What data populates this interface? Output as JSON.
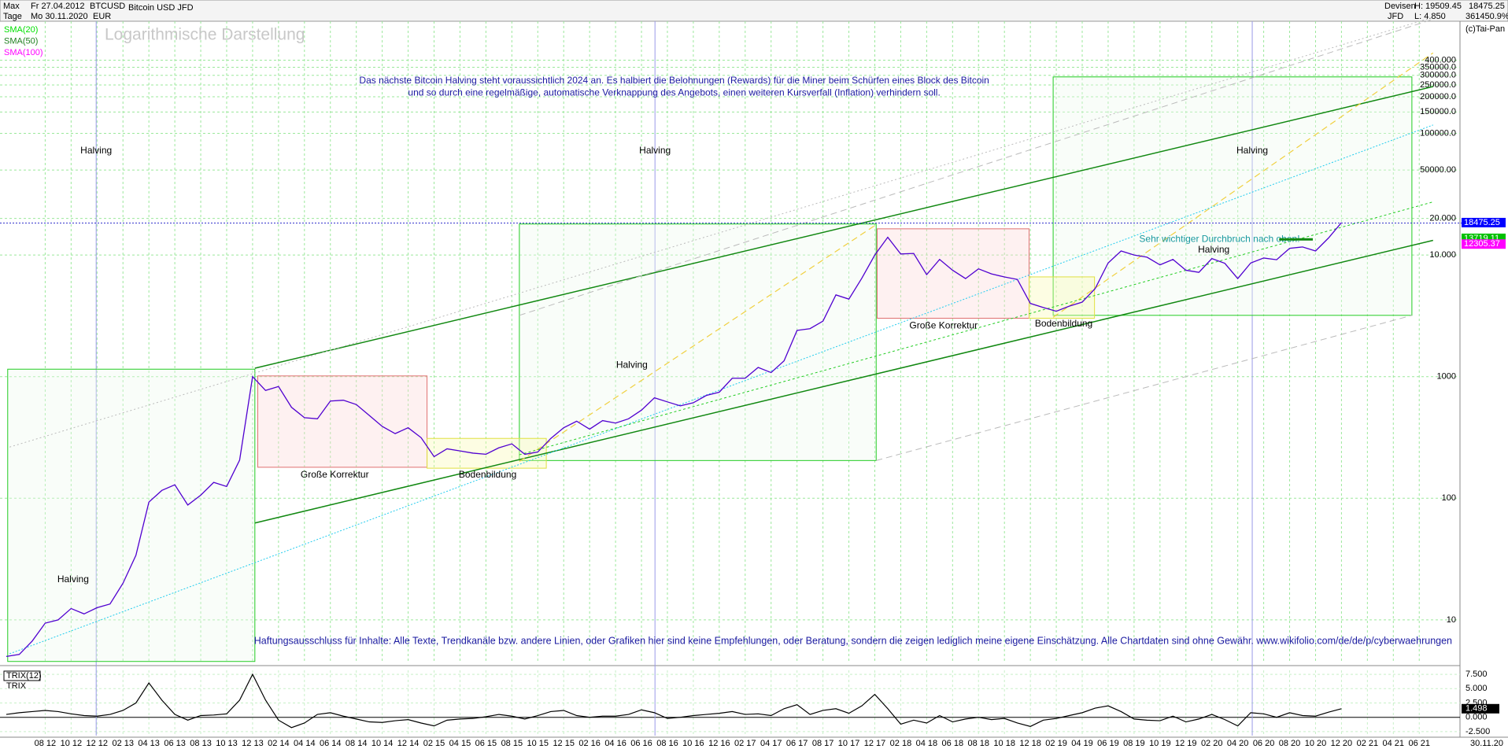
{
  "header": {
    "range": "Max",
    "from": "Fr 27.04.2012",
    "interval": "Tage",
    "to": "Mo 30.11.2020",
    "symbol": "BTCUSD",
    "currency": "EUR",
    "instrument": "Bitcoin USD JFD",
    "market": "Devisen",
    "broker": "JFD",
    "high": "H: 19509.45",
    "low": "L: 4.850",
    "last": "18475.25",
    "change": "361450.9%",
    "copyright": "(c)Tai-Pan",
    "date_end": "30.11.20"
  },
  "chart_data": [
    {
      "type": "line",
      "title": "Logarithmische Darstellung",
      "log_scale": true,
      "grid": true,
      "legend": [
        "SMA(20)",
        "SMA(50)",
        "SMA(100)"
      ],
      "legend_colors": [
        "#00e000",
        "#208020",
        "#ff00ff"
      ],
      "categories": [
        null,
        null,
        null,
        "08 12",
        null,
        "10 12",
        null,
        "12 12",
        null,
        "02 13",
        null,
        "04 13",
        null,
        "06 13",
        null,
        "08 13",
        null,
        "10 13",
        null,
        "12 13",
        null,
        "02 14",
        null,
        "04 14",
        null,
        "06 14",
        null,
        "08 14",
        null,
        "10 14",
        null,
        "12 14",
        null,
        "02 15",
        null,
        "04 15",
        null,
        "06 15",
        null,
        "08 15",
        null,
        "10 15",
        null,
        "12 15",
        null,
        "02 16",
        null,
        "04 16",
        null,
        "06 16",
        null,
        "08 16",
        null,
        "10 16",
        null,
        "12 16",
        null,
        "02 17",
        null,
        "04 17",
        null,
        "06 17",
        null,
        "08 17",
        null,
        "10 17",
        null,
        "12 17",
        null,
        "02 18",
        null,
        "04 18",
        null,
        "06 18",
        null,
        "08 18",
        null,
        "10 18",
        null,
        "12 18",
        null,
        "02 19",
        null,
        "04 19",
        null,
        "06 19",
        null,
        "08 19",
        null,
        "10 19",
        null,
        "12 19",
        null,
        "02 20",
        null,
        "04 20",
        null,
        "06 20",
        null,
        "08 20",
        null,
        "10 20",
        null,
        "12 20",
        null,
        "02 21",
        null,
        "04 21",
        null,
        "06 21"
      ],
      "series": [
        {
          "name": "BTCUSD",
          "color": "#5000d0",
          "values": [
            5,
            5.2,
            6.7,
            9.4,
            10,
            12.4,
            11.2,
            12.6,
            13.5,
            20,
            34,
            93,
            116,
            129,
            88,
            106,
            135,
            125,
            206,
            1000,
            770,
            830,
            560,
            460,
            450,
            630,
            640,
            590,
            480,
            390,
            340,
            380,
            315,
            220,
            255,
            245,
            235,
            230,
            260,
            280,
            230,
            240,
            310,
            380,
            430,
            370,
            435,
            415,
            450,
            530,
            670,
            620,
            575,
            610,
            700,
            745,
            970,
            970,
            1190,
            1080,
            1350,
            2400,
            2480,
            2860,
            4700,
            4340,
            6450,
            10000,
            14000,
            10200,
            10300,
            6900,
            9200,
            7500,
            6400,
            7700,
            7000,
            6600,
            6300,
            4000,
            3700,
            3450,
            3800,
            4100,
            5300,
            8600,
            10800,
            10000,
            9600,
            8300,
            9200,
            7500,
            7200,
            9350,
            8550,
            6400,
            8600,
            9450,
            9150,
            11350,
            11650,
            10800,
            13800,
            18475.25,
            null,
            null,
            null,
            null,
            null,
            null
          ]
        }
      ],
      "ylim": [
        4.4,
        836000
      ],
      "yticks": [
        10,
        100,
        1000,
        {
          "value": 10000,
          "label": "10.000"
        },
        {
          "value": 20000,
          "label": "20.000"
        },
        {
          "value": 50000,
          "label": "50000.00"
        },
        {
          "value": 100000,
          "label": "100000.0"
        },
        {
          "value": 150000,
          "label": "150000.0"
        },
        {
          "value": 200000,
          "label": "200000.0"
        },
        {
          "value": 250000,
          "label": "250000.0"
        },
        {
          "value": 300000,
          "label": "300000.0"
        },
        {
          "value": 350000,
          "label": "350000.0"
        },
        {
          "value": 400000,
          "label": "400.000"
        }
      ],
      "price_labels": [
        {
          "value": 18475.25,
          "color": "#0000ff"
        },
        {
          "value": 13719.11,
          "color": "#00c000"
        },
        {
          "value": 12305.37,
          "color": "#ff00ff"
        }
      ],
      "annotations": [
        "Halving",
        "Halving",
        "Halving",
        "Halving",
        "Halving",
        "Halving",
        "Große Korrektur",
        "Große Korrektur",
        "Bodenbildung",
        "Bodenbildung",
        "Sehr wichtiger Durchbruch nach oben!",
        "Das nächste Bitcoin Halving steht voraussichtlich 2024 an. Es halbiert die Belohnungen (Rewards) für die Miner beim Schürfen eines Block des Bitcoin",
        "und so durch eine regelmäßige, automatische Verknappung des Angebots, einen weiteren Kursverfall (Inflation) verhindern soll.",
        "Haftungsausschluss für Inhalte: Alle Texte, Trendkanäle bzw. andere Linien, oder Grafiken hier sind keine Empfehlungen, oder Beratung, sondern die zeigen lediglich meine eigene Einschätzung. Alle Chartdaten sind ohne Gewähr.  www.wikifolio.com/de/de/p/cyberwaehrungen"
      ]
    },
    {
      "type": "line",
      "title": "TRIX(12)",
      "subtitle": "TRIX",
      "series": [
        {
          "name": "TRIX",
          "color": "#000000",
          "values": [
            0.5,
            0.8,
            1.0,
            1.2,
            1.0,
            0.6,
            0.3,
            0.2,
            0.5,
            1.2,
            2.5,
            6.0,
            3.0,
            0.5,
            -0.5,
            0.3,
            0.4,
            0.6,
            3.0,
            7.5,
            3.0,
            -0.5,
            -1.8,
            -1.0,
            0.5,
            0.8,
            0.2,
            -0.3,
            -0.8,
            -0.9,
            -0.6,
            -0.4,
            -1.0,
            -1.5,
            -0.5,
            -0.3,
            -0.2,
            0.1,
            0.5,
            0.2,
            -0.3,
            0.3,
            1.0,
            1.2,
            0.3,
            0.0,
            0.2,
            0.2,
            0.5,
            1.3,
            0.8,
            -0.2,
            0.0,
            0.3,
            0.5,
            0.7,
            1.0,
            0.5,
            0.6,
            0.3,
            1.5,
            2.2,
            0.5,
            1.2,
            1.5,
            0.7,
            2.0,
            4.0,
            1.5,
            -1.2,
            -0.5,
            -1.0,
            0.3,
            -0.8,
            -0.3,
            0.0,
            -0.4,
            -0.2,
            -1.0,
            -1.6,
            -0.5,
            -0.2,
            0.3,
            0.8,
            1.6,
            2.0,
            1.0,
            -0.3,
            -0.5,
            -0.6,
            0.2,
            -0.8,
            -0.3,
            0.5,
            -0.4,
            -1.5,
            0.8,
            0.6,
            0.0,
            0.8,
            0.3,
            0.2,
            0.9,
            1.498,
            null,
            null,
            null,
            null,
            null,
            null
          ]
        }
      ],
      "ylim": [
        -3.2,
        8.2
      ],
      "yticks": [
        {
          "value": 7.5,
          "label": "7.500"
        },
        {
          "value": 5,
          "label": "5.000"
        },
        {
          "value": 2.5,
          "label": "2.500"
        },
        {
          "value": 0,
          "label": "0.000"
        },
        {
          "value": -2.5,
          "label": "-2.500"
        }
      ],
      "last_value": 1.498
    }
  ]
}
